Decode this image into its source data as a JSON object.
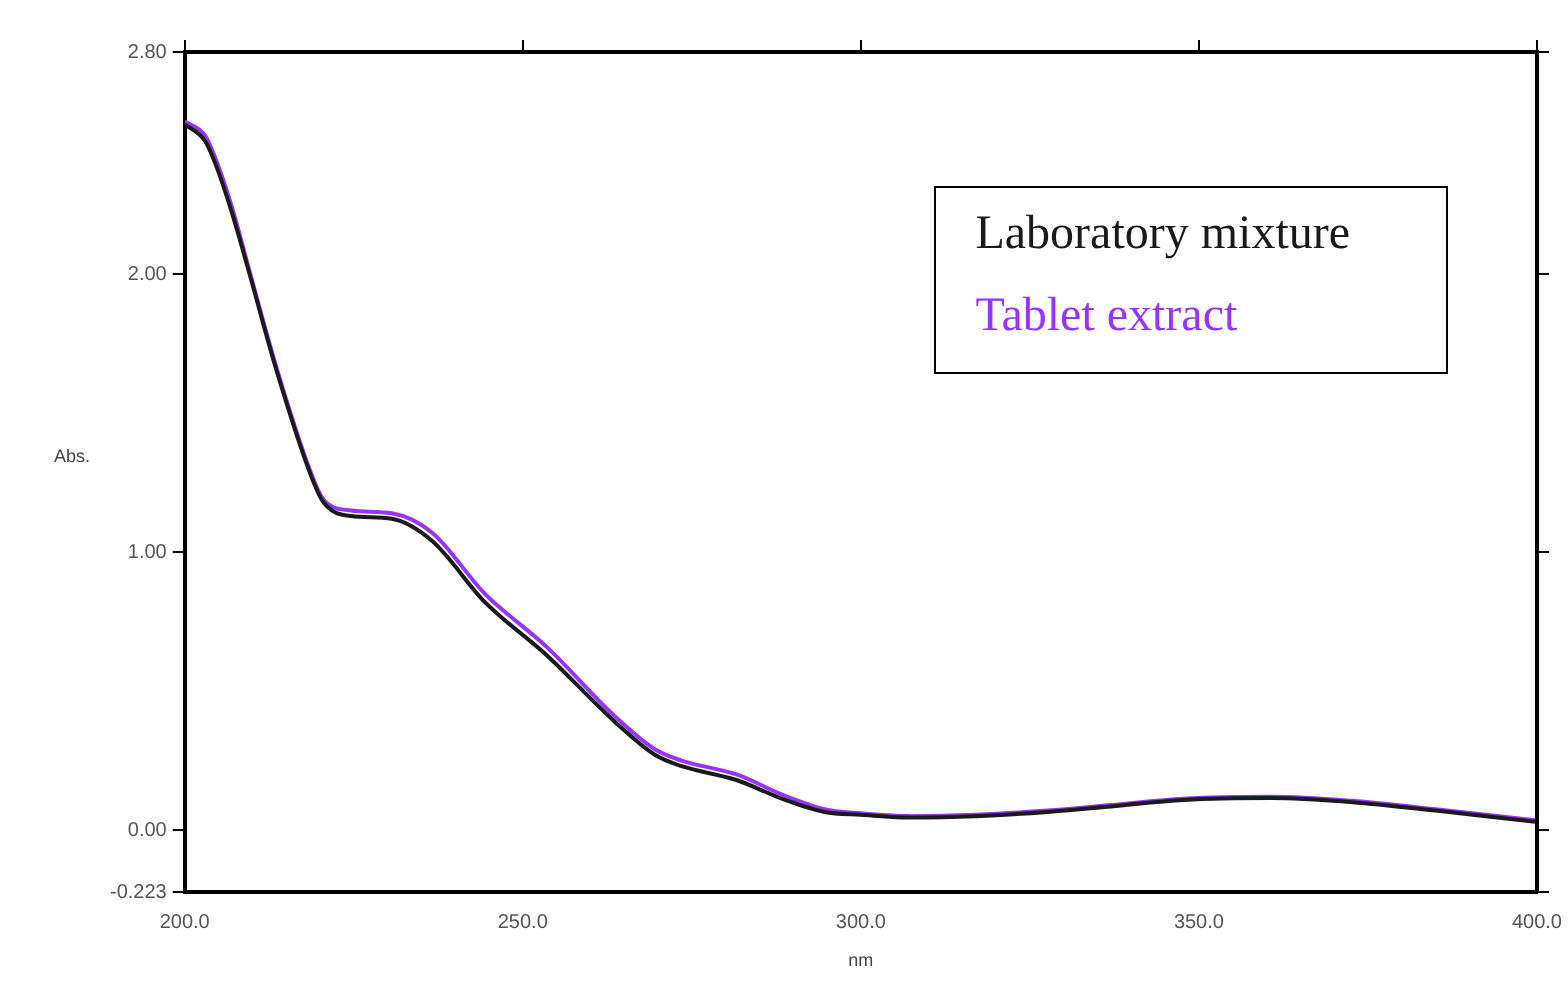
{
  "chart_data": {
    "type": "line",
    "xlabel": "nm",
    "ylabel": "Abs.",
    "x": [
      200,
      203,
      204.5,
      207,
      209.6,
      213.5,
      218.6,
      220.5,
      224.6,
      230.6,
      236.6,
      244.4,
      253.5,
      263.6,
      269.6,
      273.5,
      281.6,
      288.6,
      294.6,
      300,
      307.5,
      317,
      327.6,
      337,
      347.7,
      360.7,
      372.7,
      385,
      399.7
    ],
    "series": [
      {
        "name": "Laboratory mixture",
        "color": "#1a1a1a",
        "values": [
          2.54,
          2.48,
          2.4,
          2.22,
          2.0,
          1.66,
          1.28,
          1.18,
          1.13,
          1.12,
          1.04,
          0.82,
          0.63,
          0.39,
          0.27,
          0.23,
          0.18,
          0.11,
          0.065,
          0.055,
          0.045,
          0.05,
          0.065,
          0.085,
          0.108,
          0.115,
          0.1,
          0.07,
          0.03
        ]
      },
      {
        "name": "Tablet extract",
        "color": "#9933ff",
        "values": [
          2.55,
          2.5,
          2.42,
          2.24,
          2.01,
          1.67,
          1.29,
          1.19,
          1.15,
          1.14,
          1.07,
          0.85,
          0.66,
          0.41,
          0.29,
          0.25,
          0.2,
          0.125,
          0.075,
          0.06,
          0.05,
          0.055,
          0.07,
          0.09,
          0.113,
          0.12,
          0.105,
          0.075,
          0.035
        ]
      }
    ],
    "xlim": [
      200,
      400
    ],
    "xticks": [
      {
        "value": 200,
        "label": "200.0"
      },
      {
        "value": 250,
        "label": "250.0"
      },
      {
        "value": 300,
        "label": "300.0"
      },
      {
        "value": 350,
        "label": "350.0"
      },
      {
        "value": 400,
        "label": "400.0"
      }
    ],
    "ylim": [
      -0.223,
      2.8
    ],
    "yticks": [
      {
        "value": -0.223,
        "label": "-0.223"
      },
      {
        "value": 0,
        "label": "0.00"
      },
      {
        "value": 1,
        "label": "1.00"
      },
      {
        "value": 2,
        "label": "2.00"
      },
      {
        "value": 2.8,
        "label": "2.80"
      }
    ],
    "grid": false,
    "legend": "top right",
    "marker": "none",
    "line_style": "solid"
  }
}
